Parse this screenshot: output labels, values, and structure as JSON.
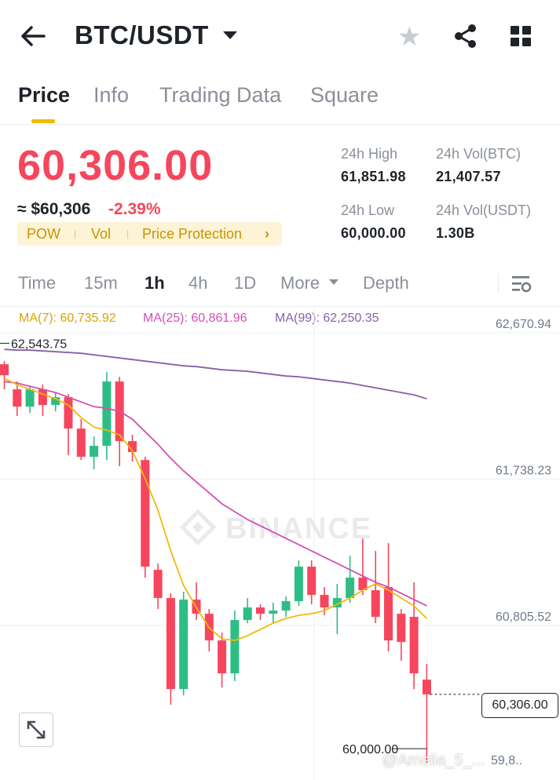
{
  "header": {
    "back_icon": "arrow-left-icon",
    "pair": "BTC/USDT",
    "favorite_icon": "star-icon",
    "share_icon": "share-icon",
    "menu_icon": "grid-icon"
  },
  "tabs": [
    {
      "label": "Price",
      "active": true
    },
    {
      "label": "Info",
      "active": false
    },
    {
      "label": "Trading Data",
      "active": false
    },
    {
      "label": "Square",
      "active": false
    }
  ],
  "ticker": {
    "last_price": "60,306.00",
    "approx_usd": "≈ $60,306",
    "change_pct": "-2.39%",
    "tags": [
      "POW",
      "Vol",
      "Price Protection"
    ],
    "tags_chevron": "›",
    "stats": {
      "high_label": "24h High",
      "high_value": "61,851.98",
      "vol_btc_label": "24h Vol(BTC)",
      "vol_btc_value": "21,407.57",
      "low_label": "24h Low",
      "low_value": "60,000.00",
      "vol_usdt_label": "24h Vol(USDT)",
      "vol_usdt_value": "1.30B"
    }
  },
  "intervals": {
    "items": [
      "Time",
      "15m",
      "1h",
      "4h",
      "1D",
      "More",
      "Depth"
    ],
    "active": "1h",
    "settings_icon": "chart-settings-icon"
  },
  "moving_averages": {
    "ma7": "MA(7): 60,735.92",
    "ma25": "MA(25): 60,861.96",
    "ma99": "MA(99): 62,250.35",
    "colors": {
      "ma7": "#f0b90b",
      "ma25": "#d54fb4",
      "ma99": "#8b5ea7"
    }
  },
  "colors": {
    "up": "#2ebd85",
    "down": "#f6465d",
    "accent": "#f0b90b"
  },
  "chart_data": {
    "type": "candlestick",
    "watermark": "BINANCE",
    "y_ticks": [
      "62,670.94",
      "61,738.23",
      "60,805.52"
    ],
    "y_range": [
      59850,
      62670.94
    ],
    "high_marker": "62,543.75",
    "low_marker": "60,000.00",
    "low_partial": "59,8..",
    "current_price": "60,306.00",
    "candles": [
      {
        "o": 62410,
        "c": 62340,
        "h": 62430,
        "l": 62250
      },
      {
        "o": 62250,
        "c": 62140,
        "h": 62300,
        "l": 62080
      },
      {
        "o": 62140,
        "c": 62250,
        "h": 62270,
        "l": 62100
      },
      {
        "o": 62250,
        "c": 62150,
        "h": 62280,
        "l": 62080
      },
      {
        "o": 62150,
        "c": 62200,
        "h": 62230,
        "l": 62110
      },
      {
        "o": 62200,
        "c": 62000,
        "h": 62220,
        "l": 61830
      },
      {
        "o": 62000,
        "c": 61820,
        "h": 62060,
        "l": 61800
      },
      {
        "o": 61820,
        "c": 61890,
        "h": 61950,
        "l": 61740
      },
      {
        "o": 61890,
        "c": 62300,
        "h": 62360,
        "l": 61800
      },
      {
        "o": 62300,
        "c": 61920,
        "h": 62330,
        "l": 61760
      },
      {
        "o": 61920,
        "c": 61850,
        "h": 61960,
        "l": 61790
      },
      {
        "o": 61800,
        "c": 61120,
        "h": 61820,
        "l": 61050
      },
      {
        "o": 61100,
        "c": 60920,
        "h": 61140,
        "l": 60850
      },
      {
        "o": 60920,
        "c": 60340,
        "h": 60950,
        "l": 60240
      },
      {
        "o": 60340,
        "c": 60910,
        "h": 60960,
        "l": 60300
      },
      {
        "o": 60910,
        "c": 60820,
        "h": 61020,
        "l": 60780
      },
      {
        "o": 60820,
        "c": 60650,
        "h": 60850,
        "l": 60580
      },
      {
        "o": 60650,
        "c": 60440,
        "h": 60700,
        "l": 60350
      },
      {
        "o": 60440,
        "c": 60780,
        "h": 60840,
        "l": 60390
      },
      {
        "o": 60780,
        "c": 60860,
        "h": 60920,
        "l": 60760
      },
      {
        "o": 60860,
        "c": 60820,
        "h": 60880,
        "l": 60780
      },
      {
        "o": 60820,
        "c": 60840,
        "h": 60890,
        "l": 60760
      },
      {
        "o": 60840,
        "c": 60900,
        "h": 60930,
        "l": 60800
      },
      {
        "o": 60900,
        "c": 61120,
        "h": 61160,
        "l": 60870
      },
      {
        "o": 61120,
        "c": 60940,
        "h": 61160,
        "l": 60880
      },
      {
        "o": 60940,
        "c": 60860,
        "h": 60990,
        "l": 60810
      },
      {
        "o": 60860,
        "c": 60920,
        "h": 61010,
        "l": 60690
      },
      {
        "o": 60920,
        "c": 61050,
        "h": 61190,
        "l": 60890
      },
      {
        "o": 61050,
        "c": 60970,
        "h": 61300,
        "l": 60940
      },
      {
        "o": 60970,
        "c": 60800,
        "h": 61220,
        "l": 60760
      },
      {
        "o": 60990,
        "c": 60650,
        "h": 61270,
        "l": 60580
      },
      {
        "o": 60820,
        "c": 60640,
        "h": 60850,
        "l": 60520
      },
      {
        "o": 60800,
        "c": 60440,
        "h": 61020,
        "l": 60340
      },
      {
        "o": 60400,
        "c": 60306,
        "h": 60500,
        "l": 59870
      }
    ],
    "ma7": [
      62320,
      62280,
      62250,
      62220,
      62190,
      62150,
      62070,
      62010,
      61990,
      61960,
      61860,
      61680,
      61480,
      61220,
      61000,
      60860,
      60730,
      60660,
      60650,
      60680,
      60720,
      60760,
      60790,
      60810,
      60820,
      60840,
      60880,
      60920,
      60970,
      61010,
      60970,
      60920,
      60870,
      60790
    ],
    "ma25": [
      62300,
      62290,
      62270,
      62250,
      62230,
      62200,
      62170,
      62140,
      62130,
      62110,
      62060,
      61980,
      61900,
      61810,
      61730,
      61660,
      61590,
      61520,
      61470,
      61420,
      61380,
      61340,
      61300,
      61260,
      61220,
      61180,
      61140,
      61100,
      61060,
      61020,
      60990,
      60950,
      60910,
      60870
    ],
    "ma99": [
      62505,
      62500,
      62500,
      62495,
      62490,
      62485,
      62480,
      62470,
      62460,
      62450,
      62440,
      62430,
      62420,
      62410,
      62400,
      62395,
      62385,
      62375,
      62370,
      62365,
      62355,
      62345,
      62335,
      62330,
      62320,
      62310,
      62300,
      62290,
      62275,
      62260,
      62245,
      62230,
      62215,
      62190
    ]
  },
  "watermark_handle": "@Amelia_5_..."
}
